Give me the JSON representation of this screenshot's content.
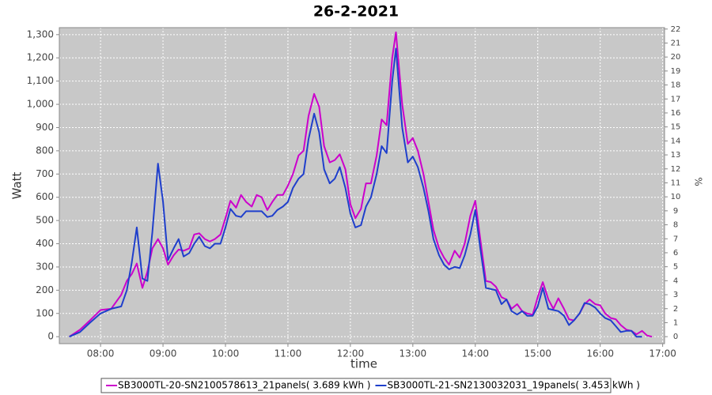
{
  "chart_data": {
    "type": "line",
    "title": "26-2-2021",
    "x_label": "time",
    "y_label": "Watt",
    "y2_label": "%",
    "x": [
      7.5,
      7.67,
      7.83,
      8.0,
      8.17,
      8.33,
      8.42,
      8.5,
      8.58,
      8.67,
      8.75,
      8.83,
      8.92,
      9.0,
      9.08,
      9.17,
      9.25,
      9.33,
      9.42,
      9.5,
      9.58,
      9.67,
      9.75,
      9.83,
      9.92,
      10.0,
      10.08,
      10.17,
      10.25,
      10.33,
      10.42,
      10.5,
      10.58,
      10.67,
      10.75,
      10.83,
      10.92,
      11.0,
      11.08,
      11.17,
      11.25,
      11.33,
      11.42,
      11.5,
      11.58,
      11.67,
      11.75,
      11.83,
      11.92,
      12.0,
      12.08,
      12.17,
      12.25,
      12.33,
      12.42,
      12.5,
      12.58,
      12.67,
      12.73,
      12.83,
      12.92,
      13.0,
      13.08,
      13.17,
      13.25,
      13.33,
      13.42,
      13.5,
      13.58,
      13.67,
      13.75,
      13.83,
      13.92,
      14.0,
      14.08,
      14.17,
      14.25,
      14.33,
      14.42,
      14.5,
      14.58,
      14.67,
      14.75,
      14.83,
      14.92,
      15.0,
      15.08,
      15.17,
      15.25,
      15.33,
      15.42,
      15.5,
      15.58,
      15.67,
      15.75,
      15.83,
      15.92,
      16.0,
      16.08,
      16.17,
      16.25,
      16.33,
      16.42,
      16.5,
      16.58,
      16.67,
      16.75,
      16.83
    ],
    "series": [
      {
        "name": "SB3000TL-20-SN2100578613_21panels( 3.689 kWh )",
        "color": "#cc00cc",
        "values": [
          0,
          30,
          70,
          115,
          120,
          180,
          240,
          270,
          315,
          210,
          280,
          380,
          420,
          380,
          310,
          350,
          375,
          370,
          380,
          440,
          445,
          420,
          410,
          420,
          440,
          510,
          585,
          555,
          610,
          580,
          560,
          610,
          600,
          545,
          580,
          610,
          610,
          650,
          700,
          780,
          800,
          950,
          1045,
          990,
          820,
          750,
          760,
          785,
          720,
          570,
          510,
          550,
          660,
          660,
          780,
          935,
          910,
          1200,
          1310,
          1000,
          830,
          855,
          800,
          700,
          580,
          460,
          380,
          340,
          310,
          370,
          340,
          400,
          520,
          585,
          420,
          240,
          235,
          215,
          170,
          160,
          120,
          140,
          110,
          100,
          95,
          170,
          235,
          160,
          120,
          165,
          120,
          75,
          70,
          100,
          140,
          160,
          140,
          135,
          100,
          80,
          75,
          50,
          30,
          25,
          10,
          25,
          5,
          0
        ]
      },
      {
        "name": "SB3000TL-21-SN2130032031_19panels( 3.453 kWh )",
        "color": "#1f3fcc",
        "values": [
          0,
          20,
          60,
          100,
          120,
          130,
          200,
          320,
          470,
          250,
          240,
          450,
          745,
          580,
          330,
          380,
          420,
          345,
          360,
          400,
          430,
          390,
          380,
          400,
          400,
          470,
          550,
          520,
          515,
          540,
          540,
          540,
          540,
          515,
          520,
          545,
          560,
          580,
          640,
          680,
          700,
          850,
          960,
          880,
          720,
          660,
          680,
          730,
          640,
          530,
          470,
          480,
          560,
          600,
          700,
          820,
          790,
          1100,
          1240,
          900,
          750,
          775,
          730,
          640,
          540,
          420,
          350,
          310,
          290,
          300,
          295,
          350,
          440,
          545,
          380,
          210,
          205,
          200,
          140,
          160,
          110,
          95,
          110,
          90,
          90,
          130,
          210,
          120,
          115,
          110,
          90,
          50,
          70,
          100,
          145,
          140,
          125,
          100,
          80,
          70,
          45,
          20,
          25,
          25,
          0,
          0,
          null,
          null
        ]
      }
    ],
    "xlim": [
      7.34,
      17.03
    ],
    "xticks": [
      {
        "value": 8,
        "label": "08:00"
      },
      {
        "value": 9,
        "label": "09:00"
      },
      {
        "value": 10,
        "label": "10:00"
      },
      {
        "value": 11,
        "label": "11:00"
      },
      {
        "value": 12,
        "label": "12:00"
      },
      {
        "value": 13,
        "label": "13:00"
      },
      {
        "value": 14,
        "label": "14:00"
      },
      {
        "value": 15,
        "label": "15:00"
      },
      {
        "value": 16,
        "label": "16:00"
      },
      {
        "value": 17,
        "label": "17:00"
      }
    ],
    "ylim": [
      -30,
      1330
    ],
    "yticks": [
      0,
      100,
      200,
      300,
      400,
      500,
      600,
      700,
      800,
      900,
      {
        "value": 1000,
        "label": "1,000"
      },
      {
        "value": 1100,
        "label": "1,100"
      },
      {
        "value": 1200,
        "label": "1,200"
      },
      {
        "value": 1300,
        "label": "1,300"
      }
    ],
    "y2lim": [
      -0.5,
      22.1
    ],
    "y2ticks": [
      0,
      1,
      2,
      3,
      4,
      5,
      6,
      7,
      8,
      9,
      10,
      11,
      12,
      13,
      14,
      15,
      16,
      17,
      18,
      19,
      20,
      21,
      22
    ],
    "grid": true,
    "legend": "bottom"
  }
}
